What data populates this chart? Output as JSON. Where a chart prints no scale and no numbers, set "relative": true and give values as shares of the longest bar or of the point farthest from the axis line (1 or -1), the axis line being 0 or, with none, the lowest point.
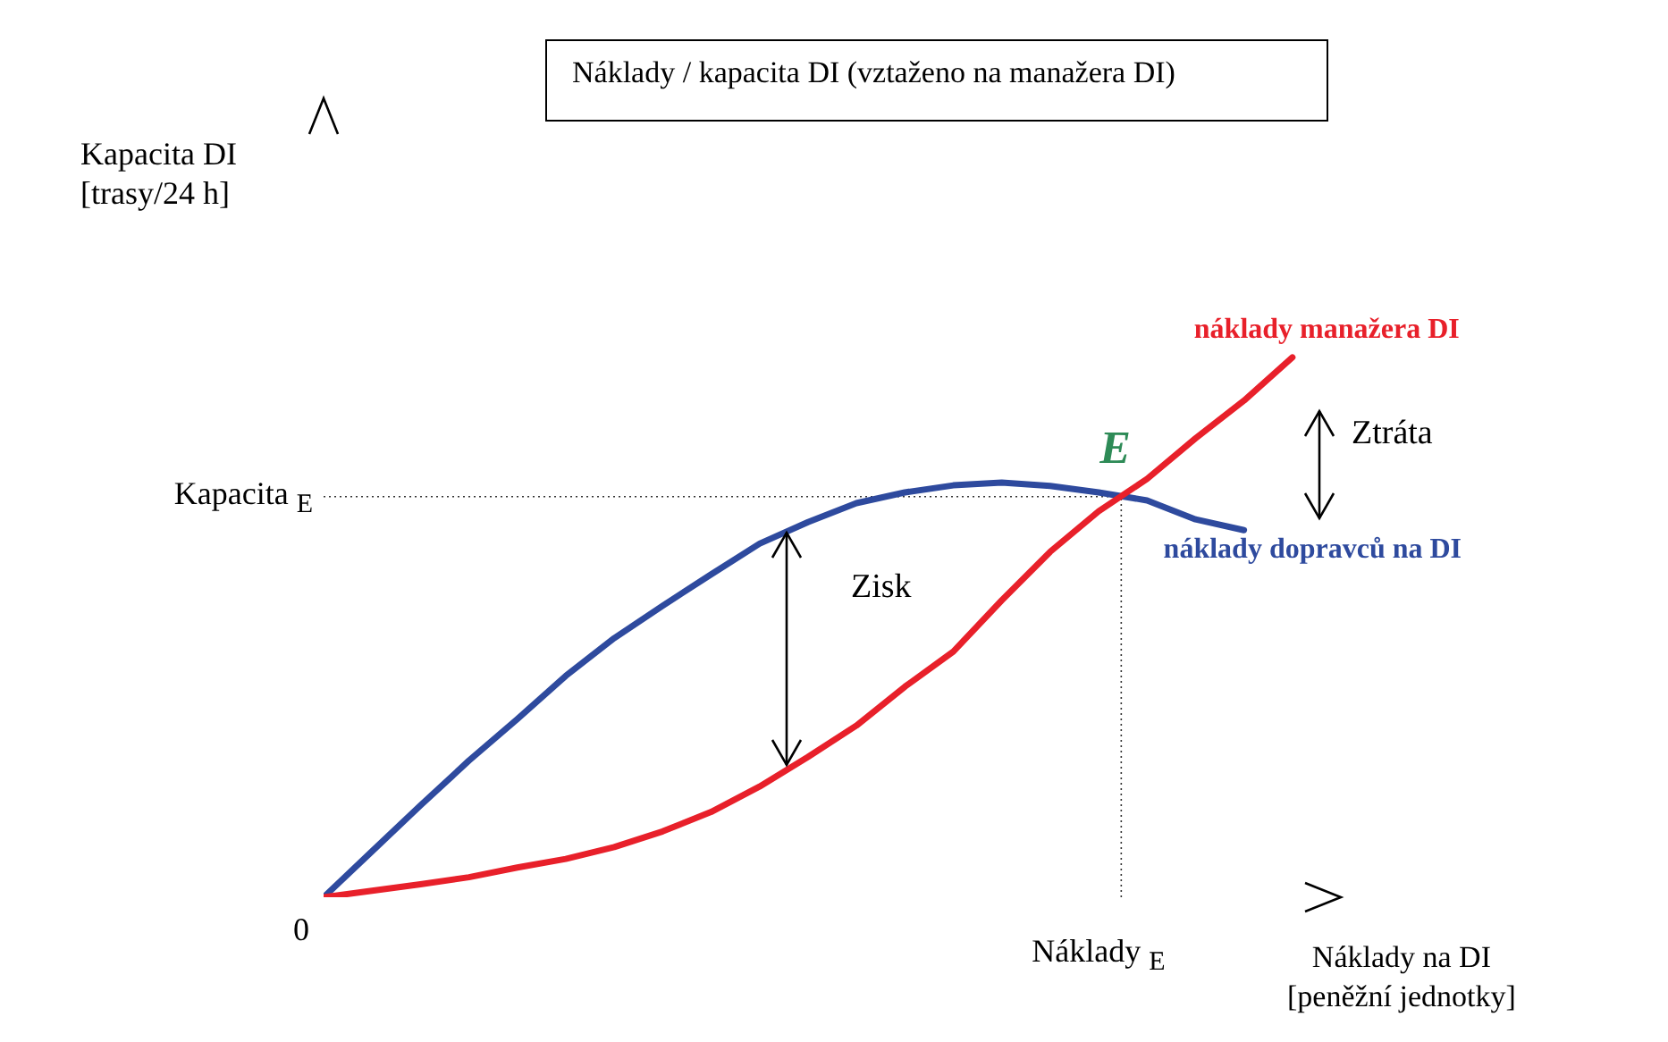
{
  "chart_data": {
    "type": "line",
    "relative": true,
    "title": "Náklady / kapacita DI (vztaženo na manažera DI)",
    "xlabel": "Náklady na DI\n[peněžní jednotky]",
    "ylabel": "Kapacita DI\n[trasy/24 h]",
    "legend": false,
    "marker": "none",
    "line_style": "solid",
    "annotations": [
      "0",
      "E",
      "Zisk",
      "Ztráta",
      "Náklady $_{E}$"
    ],
    "ref_lines": [
      {
        "axis": "y",
        "value": 0.742,
        "label": "Kapacita $_{E}$",
        "line_style": "dotted"
      }
    ],
    "categories": [
      null,
      null,
      null,
      null,
      null,
      null,
      null,
      null,
      null,
      null,
      null,
      null,
      null,
      null,
      null,
      null,
      null,
      null,
      null,
      null,
      null,
      null
    ],
    "series": [
      {
        "name": "náklady dopravců na DI",
        "color": "#2e4a9e",
        "values": [
          0,
          0.085,
          0.17,
          0.253,
          0.33,
          0.41,
          0.48,
          0.54,
          0.598,
          0.655,
          0.695,
          0.73,
          0.75,
          0.763,
          0.768,
          0.762,
          0.75,
          0.735,
          0.7,
          0.68,
          null,
          null
        ]
      },
      {
        "name": "náklady manažera DI",
        "color": "#e8202a",
        "values": [
          0,
          0.012,
          0.024,
          0.037,
          0.055,
          0.071,
          0.093,
          0.122,
          0.158,
          0.205,
          0.26,
          0.318,
          0.39,
          0.455,
          0.55,
          0.64,
          0.715,
          0.775,
          0.85,
          0.92,
          1,
          null
        ]
      }
    ]
  }
}
